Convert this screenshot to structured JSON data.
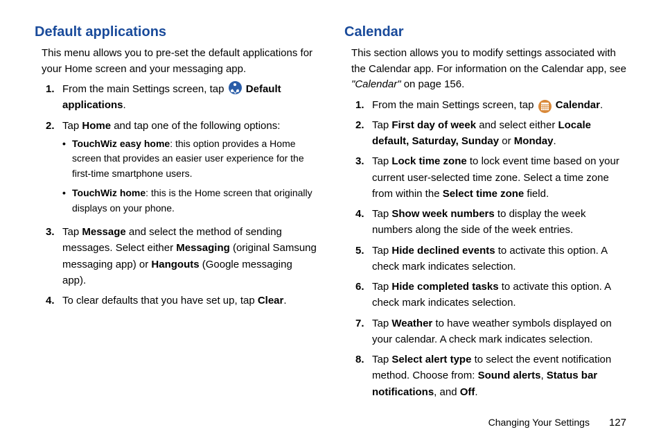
{
  "left": {
    "heading": "Default applications",
    "intro": "This menu allows you to pre-set the default applications for your Home screen and your messaging app.",
    "steps": [
      {
        "num": "1.",
        "pre": "From the main Settings screen, tap ",
        "icon": "share",
        "post_bold": "Default applications",
        "tail": "."
      },
      {
        "num": "2.",
        "text_parts": [
          "Tap ",
          {
            "b": "Home"
          },
          " and tap one of the following options:"
        ],
        "sub": [
          {
            "bold": "TouchWiz easy home",
            "rest": ": this option provides a Home screen that provides an easier user experience for the first-time smartphone users."
          },
          {
            "bold": "TouchWiz home",
            "rest": ": this is the Home screen that originally displays on your phone."
          }
        ]
      },
      {
        "num": "3.",
        "text_parts": [
          "Tap ",
          {
            "b": "Message"
          },
          " and select the method of sending messages. Select either ",
          {
            "b": "Messaging"
          },
          " (original Samsung messaging app) or ",
          {
            "b": "Hangouts"
          },
          " (Google messaging app)."
        ]
      },
      {
        "num": "4.",
        "text_parts": [
          "To clear defaults that you have set up, tap ",
          {
            "b": "Clear"
          },
          "."
        ]
      }
    ]
  },
  "right": {
    "heading": "Calendar",
    "intro_parts": [
      "This section allows you to modify settings associated with the Calendar app. For information on the Calendar app, see ",
      {
        "i": "\"Calendar\""
      },
      " on page 156."
    ],
    "steps": [
      {
        "num": "1.",
        "pre": "From the main Settings screen, tap ",
        "icon": "grid",
        "post_bold": "Calendar",
        "tail": "."
      },
      {
        "num": "2.",
        "text_parts": [
          "Tap ",
          {
            "b": "First day of week"
          },
          " and select either ",
          {
            "b": "Locale default, Saturday, Sunday"
          },
          " or ",
          {
            "b": "Monday"
          },
          "."
        ]
      },
      {
        "num": "3.",
        "text_parts": [
          "Tap ",
          {
            "b": "Lock time zone"
          },
          " to lock event time based on your current user-selected time zone. Select a time zone from within the ",
          {
            "b": "Select time zone"
          },
          " field."
        ]
      },
      {
        "num": "4.",
        "text_parts": [
          "Tap ",
          {
            "b": "Show week numbers"
          },
          " to display the week numbers along the side of the week entries."
        ]
      },
      {
        "num": "5.",
        "text_parts": [
          "Tap ",
          {
            "b": "Hide declined events"
          },
          " to activate this option. A check mark indicates selection."
        ]
      },
      {
        "num": "6.",
        "text_parts": [
          "Tap ",
          {
            "b": "Hide completed tasks"
          },
          " to activate this option. A check mark indicates selection."
        ]
      },
      {
        "num": "7.",
        "text_parts": [
          "Tap ",
          {
            "b": "Weather"
          },
          " to have weather symbols displayed on your calendar. A check mark indicates selection."
        ]
      },
      {
        "num": "8.",
        "text_parts": [
          "Tap ",
          {
            "b": "Select alert type"
          },
          " to select the event notification method. Choose from: ",
          {
            "b": "Sound alerts"
          },
          ", ",
          {
            "b": "Status bar notifications"
          },
          ", and ",
          {
            "b": "Off"
          },
          "."
        ]
      }
    ]
  },
  "footer": {
    "section": "Changing Your Settings",
    "page": "127"
  },
  "colors": {
    "heading": "#194a9a",
    "icon_blue": "#2a5da8",
    "icon_orange": "#d9893a",
    "text": "#000000",
    "bg": "#ffffff"
  }
}
